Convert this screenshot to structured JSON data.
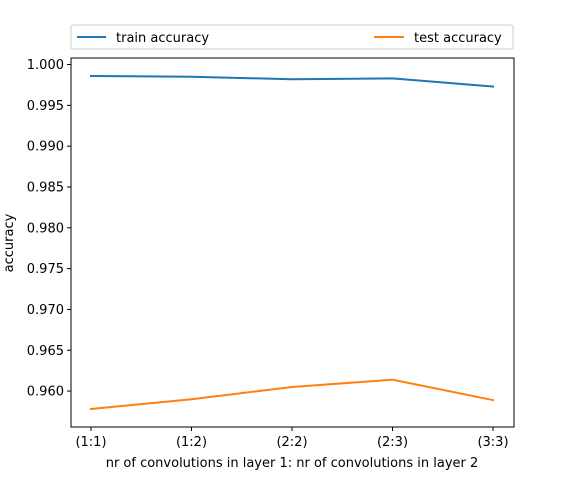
{
  "chart_data": {
    "type": "line",
    "title": "",
    "xlabel": "nr of convolutions in layer 1: nr of convolutions in layer 2",
    "ylabel": "accuracy",
    "categories": [
      "(1:1)",
      "(1:2)",
      "(2:2)",
      "(2:3)",
      "(3:3)"
    ],
    "ylim": [
      0.9556,
      1.0008
    ],
    "yticks": [
      "1.000",
      "0.995",
      "0.990",
      "0.985",
      "0.980",
      "0.975",
      "0.970",
      "0.965",
      "0.960"
    ],
    "grid": false,
    "legend": {
      "placement": "top, above plot",
      "columns": 2
    },
    "series": [
      {
        "name": "train accuracy",
        "color": "#1f77b4",
        "values": [
          0.9986,
          0.9985,
          0.9982,
          0.9983,
          0.9973
        ]
      },
      {
        "name": "test accuracy",
        "color": "#ff7f0e",
        "values": [
          0.9578,
          0.959,
          0.9605,
          0.9614,
          0.9589
        ]
      }
    ]
  }
}
